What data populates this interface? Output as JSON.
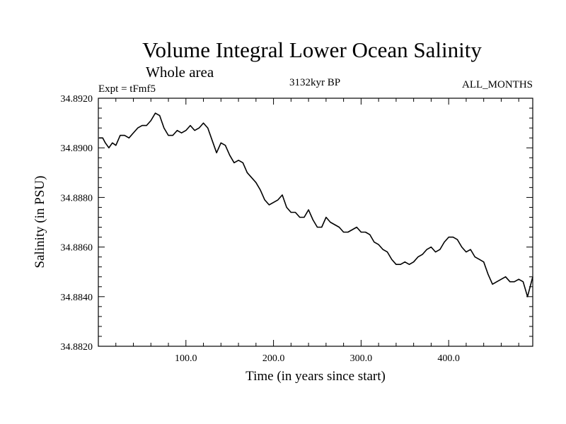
{
  "chart_data": {
    "type": "line",
    "title": "Volume Integral Lower Ocean Salinity",
    "subtitle": "Whole area",
    "experiment_label": "Expt = tFmf5",
    "period_label": "3132kyr BP",
    "months_label": "ALL_MONTHS",
    "xlabel": "Time (in years since start)",
    "ylabel": "Salinity (in PSU)",
    "xlim": [
      0,
      496
    ],
    "ylim": [
      34.882,
      34.892
    ],
    "xticks": [
      100,
      200,
      300,
      400
    ],
    "xtick_labels": [
      "100.0",
      "200.0",
      "300.0",
      "400.0"
    ],
    "yticks": [
      34.882,
      34.884,
      34.886,
      34.888,
      34.89,
      34.892
    ],
    "ytick_labels": [
      "34.8820",
      "34.8840",
      "34.8860",
      "34.8880",
      "34.8900",
      "34.8920"
    ],
    "grid": false,
    "series": [
      {
        "name": "Salinity",
        "x": [
          1,
          5,
          8,
          12,
          16,
          20,
          25,
          30,
          35,
          40,
          45,
          50,
          55,
          60,
          65,
          70,
          75,
          80,
          85,
          90,
          95,
          100,
          105,
          110,
          115,
          120,
          125,
          130,
          135,
          140,
          145,
          150,
          155,
          160,
          165,
          170,
          175,
          180,
          185,
          190,
          195,
          200,
          205,
          210,
          215,
          220,
          225,
          230,
          235,
          240,
          245,
          250,
          255,
          260,
          265,
          270,
          275,
          280,
          285,
          290,
          295,
          300,
          305,
          310,
          315,
          320,
          325,
          330,
          335,
          340,
          345,
          350,
          355,
          360,
          365,
          370,
          375,
          380,
          385,
          390,
          395,
          400,
          405,
          410,
          415,
          420,
          425,
          430,
          435,
          440,
          445,
          450,
          455,
          460,
          465,
          470,
          475,
          480,
          485,
          490,
          496
        ],
        "values": [
          34.8904,
          34.8904,
          34.8902,
          34.89,
          34.8902,
          34.8901,
          34.8905,
          34.8905,
          34.8904,
          34.8906,
          34.8908,
          34.8909,
          34.8909,
          34.8911,
          34.8914,
          34.8913,
          34.8908,
          34.8905,
          34.8905,
          34.8907,
          34.8906,
          34.8907,
          34.8909,
          34.8907,
          34.8908,
          34.891,
          34.8908,
          34.8903,
          34.8898,
          34.8902,
          34.8901,
          34.8897,
          34.8894,
          34.8895,
          34.8894,
          34.889,
          34.8888,
          34.8886,
          34.8883,
          34.8879,
          34.8877,
          34.8878,
          34.8879,
          34.8881,
          34.8876,
          34.8874,
          34.8874,
          34.8872,
          34.8872,
          34.8875,
          34.8871,
          34.8868,
          34.8868,
          34.8872,
          34.887,
          34.8869,
          34.8868,
          34.8866,
          34.8866,
          34.8867,
          34.8868,
          34.8866,
          34.8866,
          34.8865,
          34.8862,
          34.8861,
          34.8859,
          34.8858,
          34.8855,
          34.8853,
          34.8853,
          34.8854,
          34.8853,
          34.8854,
          34.8856,
          34.8857,
          34.8859,
          34.886,
          34.8858,
          34.8859,
          34.8862,
          34.8864,
          34.8864,
          34.8863,
          34.886,
          34.8858,
          34.8859,
          34.8856,
          34.8855,
          34.8854,
          34.8849,
          34.8845,
          34.8846,
          34.8847,
          34.8848,
          34.8846,
          34.8846,
          34.8847,
          34.8846,
          34.884,
          34.8848
        ]
      }
    ]
  }
}
